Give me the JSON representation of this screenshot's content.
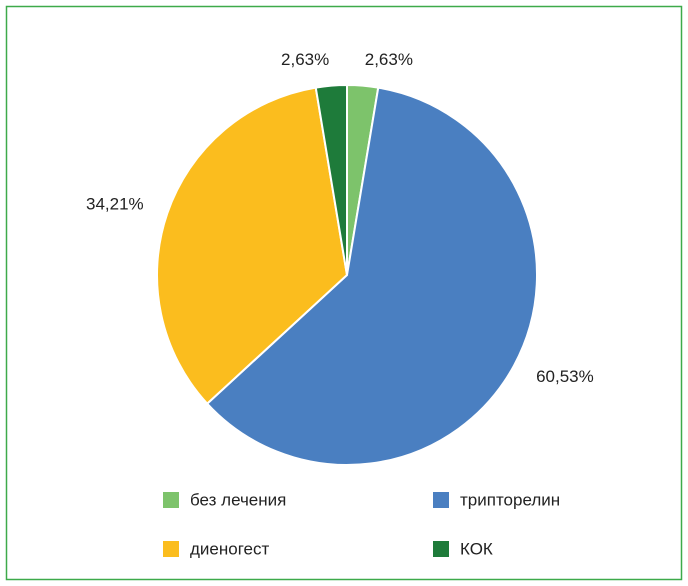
{
  "chart_data": {
    "type": "pie",
    "categories": [
      "без лечения",
      "трипторелин",
      "диеногест",
      "КОК"
    ],
    "values": [
      2.63,
      60.53,
      34.21,
      2.63
    ],
    "value_labels": [
      "2,63%",
      "60,53%",
      "34,21%",
      "2,63%"
    ],
    "colors": [
      "#7dc36b",
      "#4a7fc1",
      "#fbbd1e",
      "#1e7b3a"
    ],
    "legend": "bottom"
  }
}
